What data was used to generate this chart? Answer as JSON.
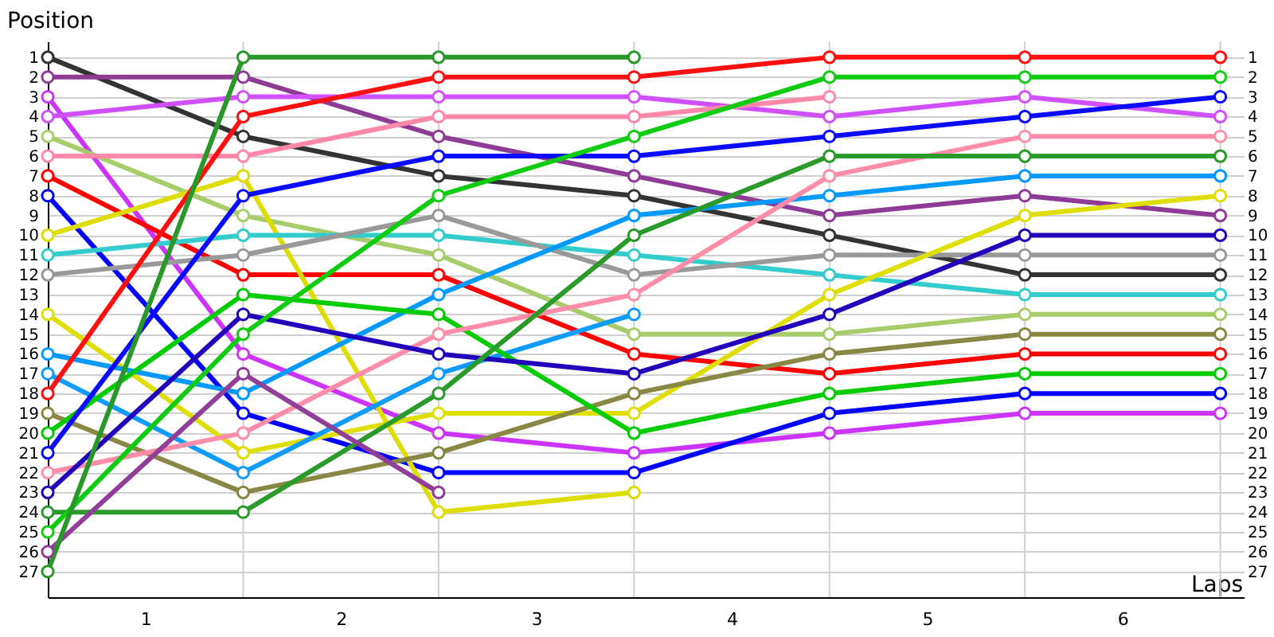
{
  "chart_data": {
    "type": "line",
    "xlabel": "Laps",
    "ylabel": "Position",
    "x": [
      0,
      1,
      2,
      3,
      4,
      5,
      6
    ],
    "xlim": [
      0,
      6.12
    ],
    "xticks": [
      {
        "value": 0.5,
        "label": "1"
      },
      {
        "value": 1.5,
        "label": "2"
      },
      {
        "value": 2.5,
        "label": "3"
      },
      {
        "value": 3.5,
        "label": "4"
      },
      {
        "value": 4.5,
        "label": "5"
      },
      {
        "value": 5.5,
        "label": "6"
      },
      {
        "value": 1,
        "label": null
      },
      {
        "value": 2,
        "label": null
      },
      {
        "value": 3,
        "label": null
      },
      {
        "value": 4,
        "label": null
      },
      {
        "value": 5,
        "label": null
      },
      {
        "value": 6,
        "label": null
      }
    ],
    "ylim": [
      28.3,
      0.2
    ],
    "yticks": [
      1,
      2,
      3,
      4,
      5,
      6,
      7,
      8,
      9,
      10,
      11,
      12,
      13,
      14,
      15,
      16,
      17,
      18,
      19,
      20,
      21,
      22,
      23,
      24,
      25,
      26,
      27
    ],
    "y2lim": [
      28.3,
      0.2
    ],
    "y2ticks": [
      1,
      2,
      3,
      4,
      5,
      6,
      7,
      8,
      9,
      10,
      11,
      12,
      13,
      14,
      15,
      16,
      17,
      18,
      19,
      20,
      21,
      22,
      23,
      24,
      25,
      26,
      27
    ],
    "grid": true,
    "legend": false,
    "marker": "circle",
    "series": [
      {
        "color": "#333333",
        "values": [
          1,
          5,
          7,
          8,
          10,
          12,
          12
        ]
      },
      {
        "color": "#8e3b96",
        "values": [
          2,
          2,
          5,
          7,
          9,
          8,
          9
        ]
      },
      {
        "color": "#cc33ff",
        "values": [
          3,
          16,
          20,
          21,
          20,
          19,
          19
        ]
      },
      {
        "color": "#d050ff",
        "values": [
          4,
          3,
          3,
          3,
          4,
          3,
          4
        ]
      },
      {
        "color": "#a8cc6a",
        "values": [
          5,
          9,
          11,
          15,
          15,
          14,
          14
        ]
      },
      {
        "color": "#ff88aa",
        "values": [
          6,
          6,
          4,
          4,
          3,
          null,
          null
        ]
      },
      {
        "color": "#ff0000",
        "values": [
          7,
          12,
          12,
          16,
          17,
          16,
          16
        ]
      },
      {
        "color": "#0000ff",
        "values": [
          8,
          19,
          22,
          22,
          19,
          18,
          18
        ]
      },
      {
        "color": "#dddd00",
        "values": [
          10,
          7,
          24,
          23,
          null,
          null,
          null
        ]
      },
      {
        "color": "#33cccc",
        "values": [
          11,
          10,
          10,
          11,
          12,
          13,
          13
        ]
      },
      {
        "color": "#999999",
        "values": [
          12,
          11,
          9,
          12,
          11,
          11,
          11
        ]
      },
      {
        "color": "#dede00",
        "values": [
          14,
          21,
          19,
          19,
          13,
          9,
          8
        ]
      },
      {
        "color": "#0099ff",
        "values": [
          16,
          18,
          13,
          9,
          8,
          7,
          7
        ]
      },
      {
        "color": "#109cff",
        "values": [
          17,
          22,
          17,
          14,
          null,
          null,
          null
        ]
      },
      {
        "color": "#ff1010",
        "values": [
          18,
          4,
          2,
          2,
          1,
          1,
          1
        ]
      },
      {
        "color": "#888844",
        "values": [
          19,
          23,
          21,
          18,
          16,
          15,
          15
        ]
      },
      {
        "color": "#00cc00",
        "values": [
          20,
          13,
          14,
          20,
          18,
          17,
          17
        ]
      },
      {
        "color": "#0a0aff",
        "values": [
          21,
          8,
          6,
          6,
          5,
          4,
          3
        ]
      },
      {
        "color": "#ff8ca8",
        "values": [
          22,
          20,
          15,
          13,
          7,
          5,
          5
        ]
      },
      {
        "color": "#2200bb",
        "values": [
          23,
          14,
          16,
          17,
          14,
          10,
          10
        ]
      },
      {
        "color": "#2a9a2a",
        "values": [
          24,
          24,
          18,
          10,
          6,
          6,
          6
        ]
      },
      {
        "color": "#10cc10",
        "values": [
          25,
          15,
          8,
          5,
          2,
          2,
          2
        ]
      },
      {
        "color": "#903e98",
        "values": [
          26,
          17,
          23,
          null,
          null,
          null,
          null
        ]
      },
      {
        "color": "#289828",
        "values": [
          27,
          1,
          1,
          1,
          null,
          null,
          null
        ]
      }
    ]
  }
}
